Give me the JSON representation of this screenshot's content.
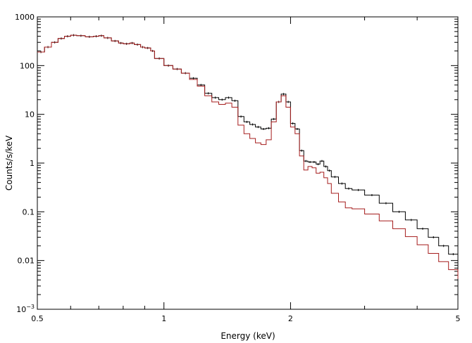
{
  "chart_data": {
    "type": "line",
    "title": "",
    "xlabel": "Energy (keV)",
    "ylabel": "Counts/s/keV",
    "x_scale": "log",
    "y_scale": "log",
    "xlim": [
      0.5,
      5
    ],
    "ylim": [
      0.001,
      1000
    ],
    "grid": false,
    "legend": "none",
    "x_ticks": [
      {
        "value": 0.5,
        "label": "0.5"
      },
      {
        "value": 1,
        "label": "1"
      },
      {
        "value": 2,
        "label": "2"
      },
      {
        "value": 5,
        "label": "5"
      }
    ],
    "y_ticks": [
      {
        "value": 0.001,
        "base": "10",
        "exp": "−3"
      },
      {
        "value": 0.01,
        "label": "0.01"
      },
      {
        "value": 0.1,
        "label": "0.1"
      },
      {
        "value": 1,
        "label": "1"
      },
      {
        "value": 10,
        "label": "10"
      },
      {
        "value": 100,
        "label": "100"
      },
      {
        "value": 1000,
        "label": "1000"
      }
    ],
    "series": [
      {
        "color": "#000000",
        "style": "step-points",
        "points": [
          [
            0.5,
            190
          ],
          [
            0.52,
            240
          ],
          [
            0.54,
            300
          ],
          [
            0.56,
            360
          ],
          [
            0.58,
            400
          ],
          [
            0.6,
            420
          ],
          [
            0.62,
            410
          ],
          [
            0.65,
            390
          ],
          [
            0.68,
            400
          ],
          [
            0.7,
            410
          ],
          [
            0.72,
            370
          ],
          [
            0.75,
            320
          ],
          [
            0.78,
            290
          ],
          [
            0.8,
            280
          ],
          [
            0.83,
            290
          ],
          [
            0.85,
            270
          ],
          [
            0.88,
            240
          ],
          [
            0.9,
            230
          ],
          [
            0.93,
            200
          ],
          [
            0.95,
            140
          ],
          [
            1.0,
            100
          ],
          [
            1.05,
            85
          ],
          [
            1.1,
            70
          ],
          [
            1.15,
            55
          ],
          [
            1.2,
            40
          ],
          [
            1.25,
            27
          ],
          [
            1.3,
            22
          ],
          [
            1.35,
            20
          ],
          [
            1.4,
            22
          ],
          [
            1.45,
            19
          ],
          [
            1.5,
            9
          ],
          [
            1.55,
            7
          ],
          [
            1.6,
            6.2
          ],
          [
            1.65,
            5.5
          ],
          [
            1.7,
            5
          ],
          [
            1.75,
            5.2
          ],
          [
            1.8,
            8
          ],
          [
            1.85,
            18
          ],
          [
            1.9,
            26
          ],
          [
            1.95,
            18
          ],
          [
            2.0,
            6.5
          ],
          [
            2.05,
            5
          ],
          [
            2.1,
            1.8
          ],
          [
            2.15,
            1.1
          ],
          [
            2.2,
            1.05
          ],
          [
            2.25,
            1.05
          ],
          [
            2.3,
            0.95
          ],
          [
            2.35,
            1.1
          ],
          [
            2.4,
            0.85
          ],
          [
            2.45,
            0.7
          ],
          [
            2.5,
            0.52
          ],
          [
            2.6,
            0.38
          ],
          [
            2.7,
            0.3
          ],
          [
            2.8,
            0.28
          ],
          [
            3.0,
            0.22
          ],
          [
            3.25,
            0.15
          ],
          [
            3.5,
            0.1
          ],
          [
            3.75,
            0.068
          ],
          [
            4.0,
            0.045
          ],
          [
            4.25,
            0.03
          ],
          [
            4.5,
            0.02
          ],
          [
            4.75,
            0.0135
          ],
          [
            5.0,
            0.009
          ]
        ]
      },
      {
        "color": "#a51c1c",
        "style": "step",
        "points": [
          [
            0.5,
            190
          ],
          [
            0.52,
            240
          ],
          [
            0.54,
            300
          ],
          [
            0.56,
            360
          ],
          [
            0.58,
            400
          ],
          [
            0.6,
            420
          ],
          [
            0.62,
            410
          ],
          [
            0.65,
            390
          ],
          [
            0.68,
            400
          ],
          [
            0.7,
            410
          ],
          [
            0.72,
            370
          ],
          [
            0.75,
            320
          ],
          [
            0.78,
            290
          ],
          [
            0.8,
            280
          ],
          [
            0.83,
            290
          ],
          [
            0.85,
            270
          ],
          [
            0.88,
            240
          ],
          [
            0.9,
            230
          ],
          [
            0.93,
            200
          ],
          [
            0.95,
            140
          ],
          [
            1.0,
            100
          ],
          [
            1.05,
            85
          ],
          [
            1.1,
            70
          ],
          [
            1.15,
            52
          ],
          [
            1.2,
            38
          ],
          [
            1.25,
            24
          ],
          [
            1.3,
            18
          ],
          [
            1.35,
            16
          ],
          [
            1.4,
            17
          ],
          [
            1.45,
            14
          ],
          [
            1.5,
            6
          ],
          [
            1.55,
            4
          ],
          [
            1.6,
            3.2
          ],
          [
            1.65,
            2.6
          ],
          [
            1.7,
            2.4
          ],
          [
            1.75,
            3
          ],
          [
            1.8,
            7
          ],
          [
            1.85,
            18
          ],
          [
            1.9,
            24
          ],
          [
            1.95,
            14
          ],
          [
            2.0,
            5.5
          ],
          [
            2.05,
            4
          ],
          [
            2.1,
            1.4
          ],
          [
            2.15,
            0.72
          ],
          [
            2.2,
            0.85
          ],
          [
            2.25,
            0.8
          ],
          [
            2.3,
            0.62
          ],
          [
            2.35,
            0.65
          ],
          [
            2.4,
            0.5
          ],
          [
            2.45,
            0.38
          ],
          [
            2.5,
            0.24
          ],
          [
            2.6,
            0.16
          ],
          [
            2.7,
            0.12
          ],
          [
            2.8,
            0.115
          ],
          [
            3.0,
            0.09
          ],
          [
            3.25,
            0.065
          ],
          [
            3.5,
            0.045
          ],
          [
            3.75,
            0.031
          ],
          [
            4.0,
            0.021
          ],
          [
            4.25,
            0.014
          ],
          [
            4.5,
            0.0095
          ],
          [
            4.75,
            0.0065
          ],
          [
            5.0,
            0.0042
          ]
        ]
      }
    ]
  }
}
